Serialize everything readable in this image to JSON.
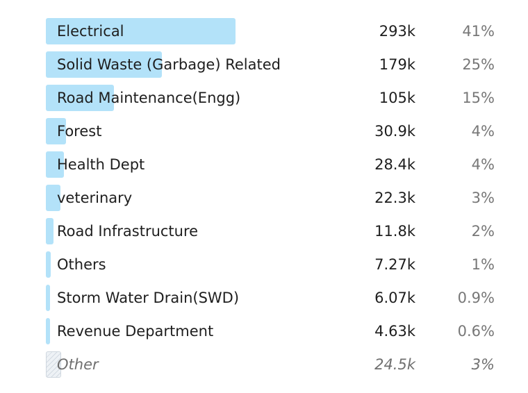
{
  "chart_data": {
    "type": "bar",
    "orientation": "horizontal",
    "categories": [
      "Electrical",
      "Solid Waste (Garbage) Related",
      "Road Maintenance(Engg)",
      "Forest",
      "Health Dept",
      "veterinary",
      "Road Infrastructure",
      "Others",
      "Storm Water Drain(SWD)",
      "Revenue Department",
      "Other"
    ],
    "values": [
      293000,
      179000,
      105000,
      30900,
      28400,
      22300,
      11800,
      7270,
      6070,
      4630,
      24500
    ],
    "value_labels": [
      "293k",
      "179k",
      "105k",
      "30.9k",
      "28.4k",
      "22.3k",
      "11.8k",
      "7.27k",
      "6.07k",
      "4.63k",
      "24.5k"
    ],
    "percent_labels": [
      "41%",
      "25%",
      "15%",
      "4%",
      "4%",
      "3%",
      "2%",
      "1%",
      "0.9%",
      "0.6%",
      "3%"
    ],
    "percents": [
      41,
      25,
      15,
      4,
      4,
      3,
      2,
      1,
      0.9,
      0.6,
      3
    ],
    "other_index": 10,
    "title": "",
    "xlabel": "",
    "ylabel": "",
    "grid": false,
    "colors": {
      "bar": "#b3e2f9",
      "other_bar": "#eef2f6",
      "text": "#1e1e1e",
      "muted": "#777777"
    }
  }
}
